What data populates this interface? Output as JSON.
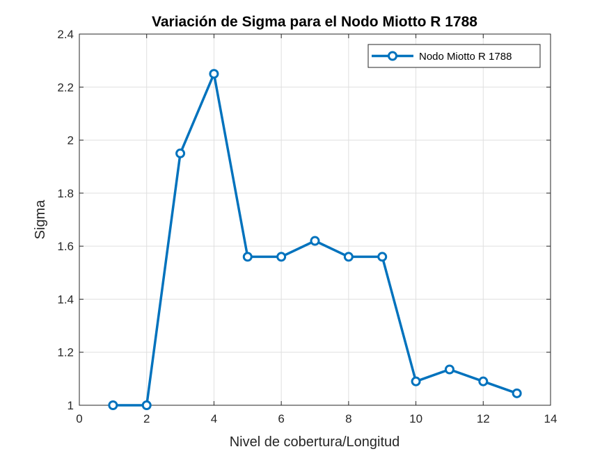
{
  "chart_data": {
    "type": "line",
    "title": "Variación de Sigma para el Nodo Miotto R 1788",
    "xlabel": "Nivel de cobertura/Longitud",
    "ylabel": "Sigma",
    "xlim": [
      0,
      14
    ],
    "ylim": [
      1,
      2.4
    ],
    "xticks": [
      0,
      2,
      4,
      6,
      8,
      10,
      12,
      14
    ],
    "xtick_labels": [
      "0",
      "2",
      "4",
      "6",
      "8",
      "10",
      "12",
      "14"
    ],
    "yticks": [
      1,
      1.2,
      1.4,
      1.6,
      1.8,
      2,
      2.2,
      2.4
    ],
    "ytick_labels": [
      "1",
      "1.2",
      "1.4",
      "1.6",
      "1.8",
      "2",
      "2.2",
      "2.4"
    ],
    "grid": true,
    "legend_position": "top-right",
    "series": [
      {
        "name": "Nodo Miotto R 1788",
        "color": "#0072BD",
        "marker": "circle",
        "x": [
          1,
          2,
          3,
          4,
          5,
          6,
          7,
          8,
          9,
          10,
          11,
          12,
          13
        ],
        "y": [
          1.0,
          1.0,
          1.95,
          2.25,
          1.56,
          1.56,
          1.62,
          1.56,
          1.56,
          1.09,
          1.135,
          1.09,
          1.045
        ]
      }
    ]
  }
}
